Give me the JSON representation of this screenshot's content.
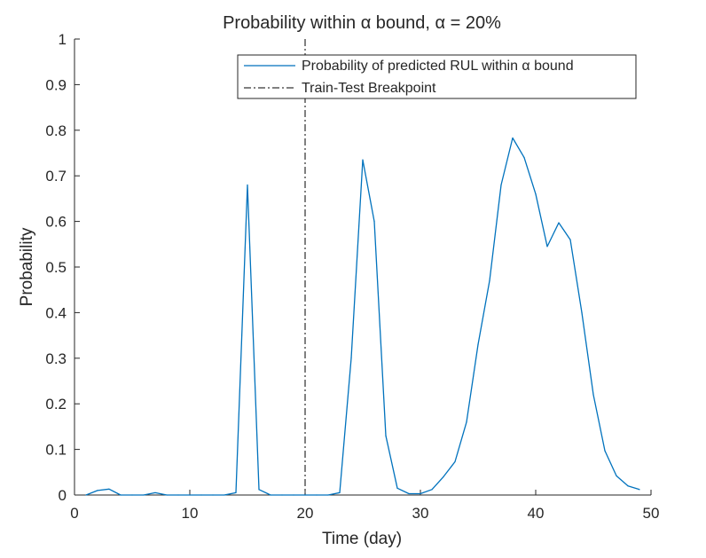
{
  "chart_data": {
    "type": "line",
    "title": "Probability within α bound, α = 20%",
    "xlabel": "Time (day)",
    "ylabel": "Probability",
    "xlim": [
      0,
      50
    ],
    "ylim": [
      0,
      1
    ],
    "xticks": [
      0,
      10,
      20,
      30,
      40,
      50
    ],
    "xtick_labels": [
      "0",
      "10",
      "20",
      "30",
      "40",
      "50"
    ],
    "yticks": [
      0,
      0.1,
      0.2,
      0.3,
      0.4,
      0.5,
      0.6,
      0.7,
      0.8,
      0.9,
      1
    ],
    "ytick_labels": [
      "0",
      "0.1",
      "0.2",
      "0.3",
      "0.4",
      "0.5",
      "0.6",
      "0.7",
      "0.8",
      "0.9",
      "1"
    ],
    "grid": false,
    "legend_position": "top-right",
    "series": [
      {
        "name": "Probability of predicted RUL within α bound",
        "color": "#0072BD",
        "x": [
          1,
          2,
          3,
          4,
          5,
          6,
          7,
          8,
          9,
          10,
          11,
          12,
          13,
          14,
          15,
          16,
          17,
          18,
          19,
          20,
          21,
          22,
          23,
          24,
          25,
          26,
          27,
          28,
          29,
          30,
          31,
          32,
          33,
          34,
          35,
          36,
          37,
          38,
          39,
          40,
          41,
          42,
          43,
          44,
          45,
          46,
          47,
          48,
          49
        ],
        "values": [
          0.0,
          0.01,
          0.013,
          0.0,
          0.0,
          0.0,
          0.005,
          0.0,
          0.0,
          0.0,
          0.0,
          0.0,
          0.0,
          0.005,
          0.68,
          0.012,
          0.0,
          0.0,
          0.0,
          0.0,
          0.0,
          0.0,
          0.005,
          0.3,
          0.735,
          0.6,
          0.13,
          0.015,
          0.003,
          0.003,
          0.012,
          0.04,
          0.073,
          0.16,
          0.33,
          0.47,
          0.68,
          0.783,
          0.74,
          0.66,
          0.545,
          0.597,
          0.56,
          0.4,
          0.22,
          0.097,
          0.042,
          0.02,
          0.012
        ]
      }
    ],
    "breakpoint": {
      "name": "Train-Test Breakpoint",
      "x": 20,
      "style": "dash-dot",
      "color": "#000000"
    }
  }
}
